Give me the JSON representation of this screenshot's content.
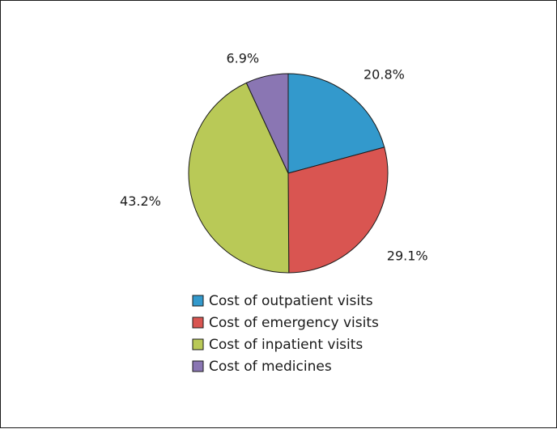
{
  "chart_data": {
    "type": "pie",
    "title": "",
    "categories": [
      "Cost of outpatient visits",
      "Cost of emergency visits",
      "Cost of inpatient visits",
      "Cost of medicines"
    ],
    "values": [
      20.8,
      29.1,
      43.2,
      6.9
    ],
    "labels": [
      "20.8%",
      "29.1%",
      "43.2%",
      "6.9%"
    ],
    "colors": [
      "#3399cc",
      "#d95551",
      "#b9c957",
      "#8a76b3"
    ],
    "start": "12 o'clock, clockwise",
    "legend_position": "bottom"
  }
}
